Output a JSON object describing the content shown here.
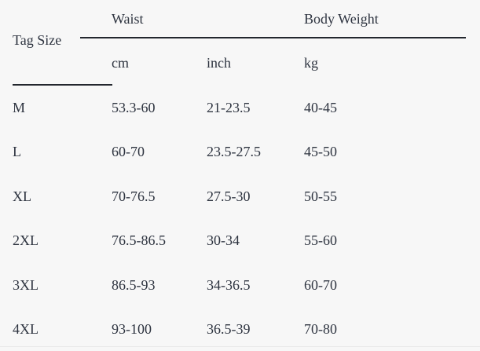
{
  "size_chart": {
    "corner_header": "Tag Size",
    "group_headers": {
      "waist": "Waist",
      "body_weight": "Body Weight"
    },
    "unit_headers": {
      "cm": "cm",
      "inch": "inch",
      "kg": "kg"
    },
    "rows": [
      {
        "size": "M",
        "waist_cm": "53.3-60",
        "waist_inch": "21-23.5",
        "weight_kg": "40-45"
      },
      {
        "size": "L",
        "waist_cm": "60-70",
        "waist_inch": "23.5-27.5",
        "weight_kg": "45-50"
      },
      {
        "size": "XL",
        "waist_cm": "70-76.5",
        "waist_inch": "27.5-30",
        "weight_kg": "50-55"
      },
      {
        "size": "2XL",
        "waist_cm": "76.5-86.5",
        "waist_inch": "30-34",
        "weight_kg": "55-60"
      },
      {
        "size": "3XL",
        "waist_cm": "86.5-93",
        "waist_inch": "34-36.5",
        "weight_kg": "60-70"
      },
      {
        "size": "4XL",
        "waist_cm": "93-100",
        "waist_inch": "36.5-39",
        "weight_kg": "70-80"
      }
    ],
    "colors": {
      "background": "#f7f7f7",
      "text": "#2e3440",
      "rule": "#23272e",
      "bottom_divider": "#e8e8e8"
    }
  }
}
